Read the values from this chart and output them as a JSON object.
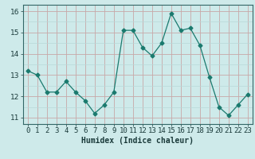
{
  "x": [
    0,
    1,
    2,
    3,
    4,
    5,
    6,
    7,
    8,
    9,
    10,
    11,
    12,
    13,
    14,
    15,
    16,
    17,
    18,
    19,
    20,
    21,
    22,
    23
  ],
  "y": [
    13.2,
    13.0,
    12.2,
    12.2,
    12.7,
    12.2,
    11.8,
    11.2,
    11.6,
    12.2,
    15.1,
    15.1,
    14.3,
    13.9,
    14.5,
    15.9,
    15.1,
    15.2,
    14.4,
    12.9,
    11.5,
    11.1,
    11.6,
    12.1
  ],
  "line_color": "#1a7a6e",
  "marker": "D",
  "marker_size": 2.5,
  "bg_color": "#ceeaea",
  "grid_color_major": "#c8a8a8",
  "grid_color_minor": "#b8d8d8",
  "xlabel": "Humidex (Indice chaleur)",
  "xlabel_fontsize": 7,
  "ylabel_ticks": [
    11,
    12,
    13,
    14,
    15,
    16
  ],
  "xlim": [
    -0.5,
    23.5
  ],
  "ylim": [
    10.7,
    16.3
  ],
  "tick_fontsize": 6.5
}
